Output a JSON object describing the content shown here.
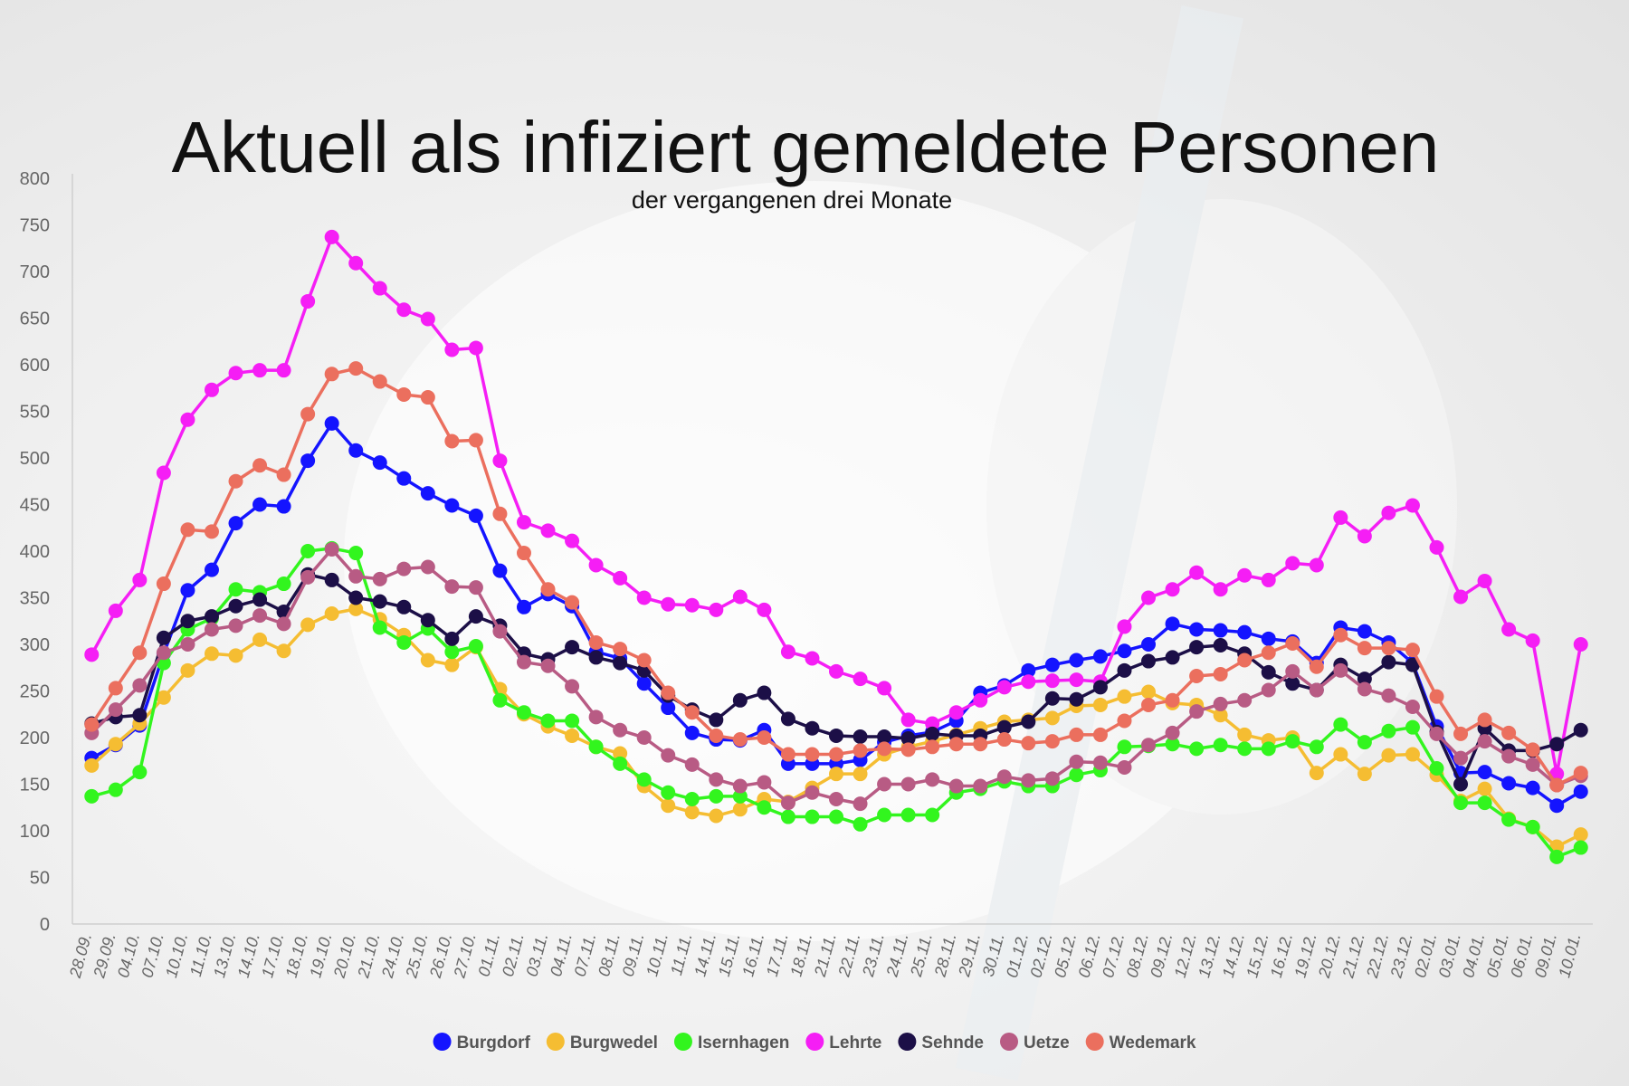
{
  "chart_data": {
    "type": "line",
    "title": "Aktuell als infiziert gemeldete Personen",
    "subtitle": "der vergangenen drei Monate",
    "ylim": [
      0,
      800
    ],
    "yticks": [
      0,
      50,
      100,
      150,
      200,
      250,
      300,
      350,
      400,
      450,
      500,
      550,
      600,
      650,
      700,
      750,
      800
    ],
    "grid": false,
    "legend_position": "bottom",
    "x": [
      "28.09.",
      "29.09.",
      "04.10.",
      "07.10.",
      "10.10.",
      "11.10.",
      "13.10.",
      "14.10.",
      "17.10.",
      "18.10.",
      "19.10.",
      "20.10.",
      "21.10.",
      "24.10.",
      "25.10.",
      "26.10.",
      "27.10.",
      "01.11.",
      "02.11.",
      "03.11.",
      "04.11.",
      "07.11.",
      "08.11.",
      "09.11.",
      "10.11.",
      "11.11.",
      "14.11.",
      "15.11.",
      "16.11.",
      "17.11.",
      "18.11.",
      "21.11.",
      "22.11.",
      "23.11.",
      "24.11.",
      "25.11.",
      "28.11.",
      "29.11.",
      "30.11.",
      "01.12.",
      "02.12.",
      "05.12.",
      "06.12.",
      "07.12.",
      "08.12.",
      "09.12.",
      "12.12.",
      "13.12.",
      "14.12.",
      "15.12.",
      "16.12.",
      "19.12.",
      "20.12.",
      "21.12.",
      "22.12.",
      "23.12.",
      "02.01.",
      "03.01.",
      "04.01.",
      "05.01.",
      "06.01.",
      "09.01.",
      "10.01."
    ],
    "x_label_every": 1,
    "series": [
      {
        "name": "Burgdorf",
        "color": "#1414ff",
        "values": [
          178,
          192,
          213,
          290,
          358,
          380,
          430,
          450,
          448,
          497,
          537,
          508,
          495,
          478,
          462,
          449,
          438,
          379,
          340,
          354,
          341,
          292,
          285,
          258,
          232,
          205,
          198,
          197,
          208,
          172,
          172,
          172,
          176,
          195,
          202,
          206,
          218,
          248,
          256,
          272,
          278,
          283,
          287,
          293,
          300,
          322,
          316,
          315,
          313,
          306,
          303,
          280,
          318,
          314,
          302,
          280,
          212,
          162,
          163,
          151,
          146,
          127,
          142
        ]
      },
      {
        "name": "Burgwedel",
        "color": "#f5bd32",
        "values": [
          170,
          193,
          215,
          243,
          272,
          290,
          288,
          305,
          293,
          321,
          333,
          338,
          327,
          310,
          283,
          278,
          297,
          252,
          225,
          212,
          202,
          190,
          183,
          148,
          127,
          120,
          116,
          123,
          134,
          131,
          146,
          161,
          161,
          182,
          190,
          196,
          203,
          210,
          217,
          219,
          221,
          234,
          235,
          244,
          249,
          237,
          235,
          224,
          203,
          197,
          200,
          162,
          182,
          161,
          181,
          182,
          160,
          132,
          145,
          113,
          104,
          83,
          96
        ]
      },
      {
        "name": "Isernhagen",
        "color": "#32f51e",
        "values": [
          137,
          144,
          163,
          280,
          316,
          328,
          359,
          356,
          365,
          400,
          403,
          398,
          318,
          302,
          317,
          292,
          298,
          240,
          227,
          218,
          218,
          190,
          172,
          155,
          141,
          134,
          137,
          137,
          125,
          115,
          115,
          115,
          107,
          117,
          117,
          117,
          141,
          145,
          153,
          148,
          148,
          160,
          165,
          190,
          191,
          193,
          188,
          192,
          188,
          188,
          196,
          190,
          214,
          195,
          207,
          211,
          167,
          130,
          130,
          112,
          104,
          72,
          82
        ]
      },
      {
        "name": "Lehrte",
        "color": "#f51ef5",
        "values": [
          289,
          336,
          369,
          484,
          541,
          573,
          591,
          594,
          594,
          668,
          737,
          709,
          682,
          659,
          649,
          616,
          618,
          497,
          431,
          422,
          411,
          385,
          371,
          350,
          343,
          342,
          337,
          351,
          337,
          292,
          285,
          271,
          263,
          253,
          219,
          215,
          227,
          240,
          254,
          260,
          261,
          262,
          260,
          319,
          350,
          359,
          377,
          359,
          374,
          369,
          387,
          385,
          436,
          416,
          441,
          449,
          404,
          351,
          368,
          316,
          304,
          161,
          300
        ]
      },
      {
        "name": "Sehnde",
        "color": "#1c0f47",
        "values": [
          215,
          222,
          224,
          307,
          325,
          330,
          341,
          348,
          335,
          375,
          369,
          350,
          346,
          340,
          326,
          306,
          330,
          320,
          290,
          284,
          297,
          286,
          280,
          272,
          245,
          230,
          219,
          240,
          248,
          220,
          210,
          202,
          201,
          201,
          199,
          204,
          202,
          202,
          211,
          217,
          242,
          241,
          254,
          272,
          282,
          286,
          297,
          299,
          290,
          270,
          258,
          251,
          278,
          263,
          281,
          278,
          206,
          150,
          210,
          186,
          186,
          193,
          208
        ]
      },
      {
        "name": "Uetze",
        "color": "#b85b84",
        "values": [
          205,
          230,
          256,
          291,
          300,
          316,
          320,
          331,
          322,
          372,
          402,
          373,
          370,
          381,
          383,
          362,
          361,
          314,
          281,
          277,
          255,
          222,
          208,
          200,
          181,
          171,
          155,
          148,
          152,
          130,
          141,
          134,
          129,
          150,
          150,
          155,
          148,
          148,
          158,
          154,
          156,
          174,
          173,
          168,
          192,
          205,
          228,
          236,
          240,
          251,
          271,
          251,
          272,
          252,
          245,
          233,
          204,
          178,
          196,
          180,
          171,
          149,
          159
        ]
      },
      {
        "name": "Wedemark",
        "color": "#eb6f5e",
        "values": [
          214,
          253,
          291,
          365,
          423,
          421,
          475,
          492,
          482,
          547,
          590,
          596,
          582,
          568,
          565,
          518,
          519,
          440,
          398,
          359,
          345,
          302,
          295,
          283,
          248,
          227,
          202,
          198,
          200,
          182,
          182,
          182,
          186,
          188,
          187,
          190,
          193,
          193,
          198,
          194,
          196,
          203,
          203,
          218,
          235,
          240,
          266,
          268,
          283,
          291,
          301,
          276,
          310,
          296,
          296,
          294,
          244,
          204,
          219,
          205,
          187,
          149,
          162
        ]
      }
    ]
  }
}
